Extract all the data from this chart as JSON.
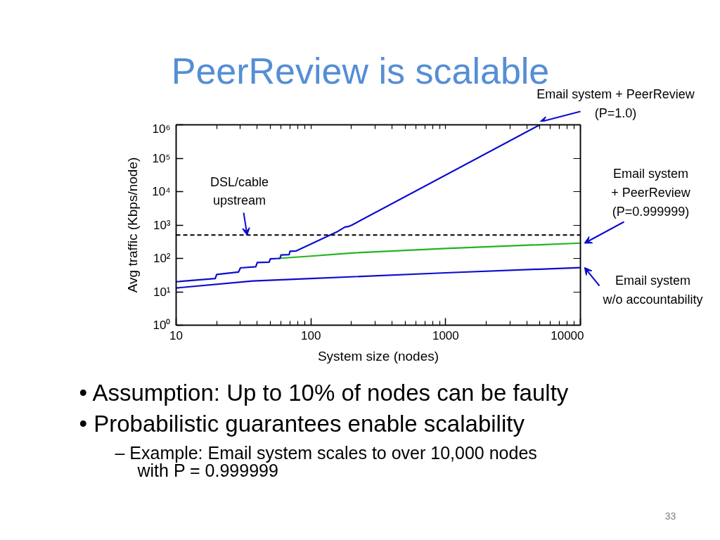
{
  "chart_data": {
    "type": "line",
    "title": "PeerReview is scalable",
    "xlabel": "System size (nodes)",
    "ylabel": "Avg traffic (Kbps/node)",
    "log": "xy",
    "xlim": [
      10,
      10000
    ],
    "ylim": [
      1,
      1000000
    ],
    "xticks": [
      10,
      100,
      1000,
      10000
    ],
    "yticks": [
      {
        "value": 1,
        "label": "10⁰"
      },
      {
        "value": 10,
        "label": "10¹"
      },
      {
        "value": 100,
        "label": "10²"
      },
      {
        "value": 1000,
        "label": "10³"
      },
      {
        "value": 10000,
        "label": "10⁴"
      },
      {
        "value": 100000,
        "label": "10⁵"
      },
      {
        "value": 1000000,
        "label": "10⁶"
      }
    ],
    "series": [
      {
        "name": "Email system + PeerReview (P=1.0)",
        "color": "#0c0cd0",
        "x": [
          10,
          19.5,
          20,
          29,
          30,
          39,
          40,
          49,
          50,
          59,
          60,
          69,
          70,
          78,
          159,
          179,
          190,
          202,
          5000
        ],
        "values": [
          20,
          25,
          33,
          39,
          52,
          56,
          75,
          77,
          97,
          100,
          127,
          130,
          163,
          168,
          650,
          870,
          900,
          1000,
          1000000
        ]
      },
      {
        "name": "Email system + PeerReview (P=0.999999)",
        "color": "#22b422",
        "x": [
          57,
          100,
          200,
          1000,
          10000
        ],
        "values": [
          100,
          117,
          145,
          198,
          287
        ]
      },
      {
        "name": "Email system w/o accountability",
        "color": "#0c0cd0",
        "x": [
          10,
          37,
          100,
          1000,
          10000
        ],
        "values": [
          13,
          21,
          25,
          37,
          53
        ]
      }
    ],
    "ref_lines": [
      {
        "axis": "y",
        "value": 500,
        "label": "DSL/cable upstream",
        "color": "#000000",
        "line_style": "dashed"
      }
    ],
    "annotations": [
      "• Assumption: Up to 10% of nodes can be faulty",
      "• Probabilistic guarantees enable scalability",
      "– Example: Email system scales to over 10,000 nodes with P = 0.999999",
      "33"
    ]
  }
}
